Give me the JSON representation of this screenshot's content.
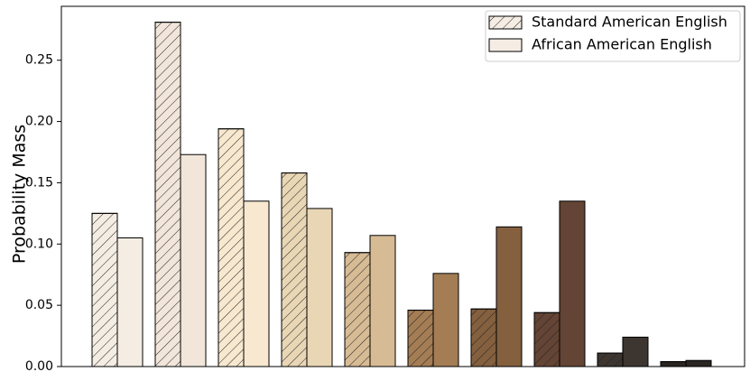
{
  "chart_data": {
    "type": "bar",
    "y_label": "Probability Mass",
    "categories": [
      null,
      null,
      null,
      null,
      null,
      null,
      null,
      null,
      null,
      null
    ],
    "series": [
      {
        "name": "Standard American English",
        "hatch": true,
        "colors": [
          "#f5ede4",
          "#f2e6da",
          "#f7e8cf",
          "#e9d6b5",
          "#d7bb94",
          "#a47d55",
          "#84603f",
          "#644434",
          "#3d3530",
          "#2a2622"
        ],
        "values": [
          0.125,
          0.281,
          0.194,
          0.158,
          0.093,
          0.046,
          0.047,
          0.044,
          0.011,
          0.004
        ]
      },
      {
        "name": "African American English",
        "hatch": false,
        "colors": [
          "#f5ede4",
          "#f2e6da",
          "#f7e8cf",
          "#e9d6b5",
          "#d7bb94",
          "#a47d55",
          "#84603f",
          "#644434",
          "#3d3530",
          "#2a2622"
        ],
        "values": [
          0.105,
          0.173,
          0.135,
          0.129,
          0.107,
          0.076,
          0.114,
          0.135,
          0.024,
          0.005
        ]
      }
    ],
    "ylim": [
      0,
      0.294
    ],
    "yticks": [
      {
        "value": 0,
        "label": "0.00"
      },
      {
        "value": 0.05,
        "label": "0.05"
      },
      {
        "value": 0.1,
        "label": "0.10"
      },
      {
        "value": 0.15,
        "label": "0.15"
      },
      {
        "value": 0.2,
        "label": "0.20"
      },
      {
        "value": 0.25,
        "label": "0.25"
      }
    ],
    "legend": "upper right"
  }
}
